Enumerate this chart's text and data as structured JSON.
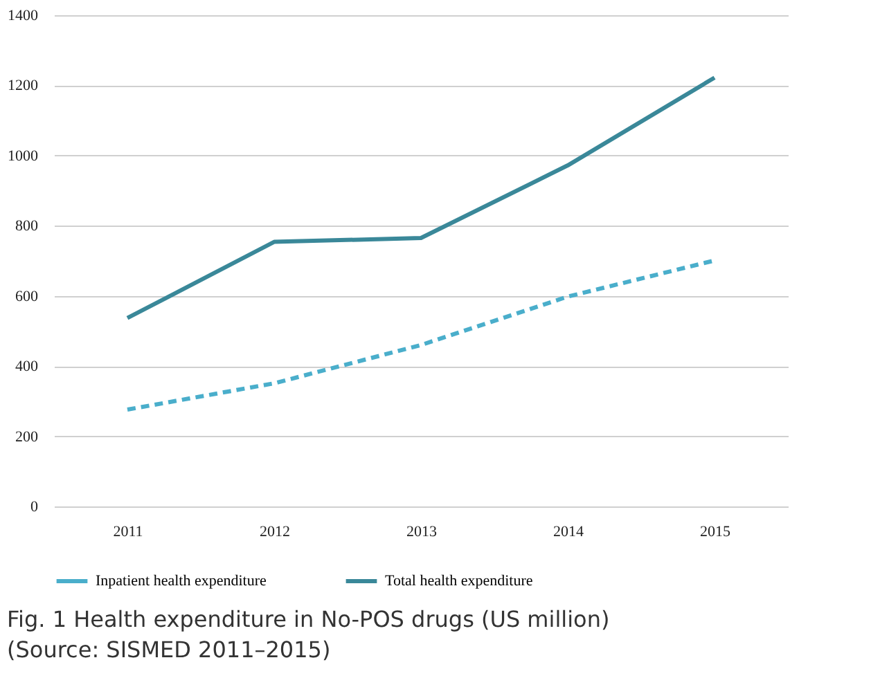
{
  "chart_data": {
    "type": "line",
    "title": "Fig. 1  Health expenditure in No-POS drugs (US million) (Source: SISMED 2011–2015)",
    "categories": [
      "2011",
      "2012",
      "2013",
      "2014",
      "2015"
    ],
    "series": [
      {
        "name": "Inpatient health expenditure",
        "color": "#4aaecb",
        "line_style": "dashed",
        "values": [
          276,
          351,
          460,
          598,
          701
        ]
      },
      {
        "name": "Total health expenditure",
        "color": "#3a8899",
        "line_style": "solid",
        "values": [
          537,
          754,
          765,
          972,
          1222
        ]
      }
    ],
    "ylim": [
      0,
      1400
    ],
    "yticks": [
      0,
      200,
      400,
      600,
      800,
      1000,
      1200,
      1400
    ],
    "grid": "y",
    "legend": "bottom",
    "marker": "none"
  }
}
